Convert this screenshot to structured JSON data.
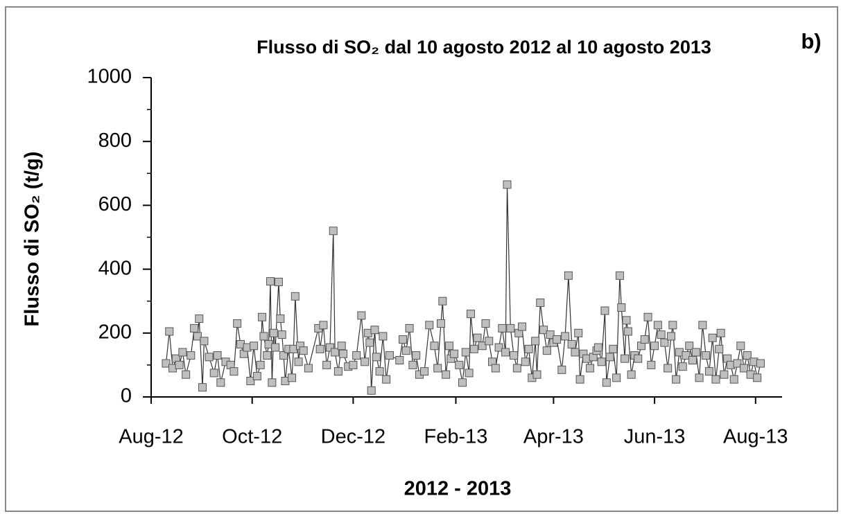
{
  "chart_data": {
    "type": "line",
    "title": "Flusso di SO₂ dal 10 agosto 2012 al 10 agosto 2013",
    "annotation": "b)",
    "ylabel": "Flusso di SO₂  (t/g)",
    "xlabel": "2012 - 2013",
    "color": "#bfbfbf",
    "line_color": "#333333",
    "xlim": [
      0,
      381
    ],
    "xticks": [
      {
        "value": 0,
        "label": "Aug-12"
      },
      {
        "value": 61,
        "label": "Oct-12"
      },
      {
        "value": 122,
        "label": "Dec-12"
      },
      {
        "value": 184,
        "label": "Feb-13"
      },
      {
        "value": 243,
        "label": "Apr-13"
      },
      {
        "value": 304,
        "label": "Jun-13"
      },
      {
        "value": 365,
        "label": "Aug-13"
      }
    ],
    "ylim": [
      0,
      1000
    ],
    "yticks": [
      0,
      200,
      400,
      600,
      800,
      1000
    ],
    "x": [
      9,
      11,
      13,
      15,
      17,
      19,
      21,
      24,
      26,
      28,
      29,
      31,
      32,
      35,
      38,
      40,
      42,
      45,
      48,
      50,
      52,
      54,
      56,
      58,
      60,
      62,
      64,
      66,
      67,
      68,
      70,
      71,
      72,
      73,
      74,
      75,
      77,
      78,
      79,
      80,
      81,
      83,
      85,
      86,
      87,
      89,
      90,
      92,
      95,
      101,
      102,
      104,
      106,
      108,
      110,
      111,
      113,
      115,
      116,
      119,
      122,
      124,
      127,
      129,
      131,
      132,
      133,
      135,
      136,
      138,
      140,
      142,
      144,
      150,
      152,
      154,
      156,
      158,
      160,
      162,
      165,
      168,
      171,
      173,
      175,
      176,
      178,
      180,
      181,
      183,
      186,
      188,
      190,
      192,
      193,
      195,
      197,
      200,
      202,
      204,
      206,
      208,
      210,
      212,
      214,
      215,
      217,
      219,
      221,
      222,
      224,
      226,
      228,
      230,
      232,
      233,
      235,
      237,
      239,
      241,
      243,
      245,
      248,
      250,
      252,
      254,
      256,
      258,
      259,
      261,
      263,
      265,
      267,
      269,
      270,
      272,
      274,
      275,
      277,
      279,
      281,
      283,
      284,
      286,
      287,
      288,
      290,
      292,
      294,
      296,
      298,
      300,
      302,
      304,
      306,
      308,
      310,
      312,
      314,
      315,
      317,
      319,
      321,
      323,
      325,
      327,
      329,
      331,
      333,
      335,
      337,
      339,
      341,
      343,
      344,
      346,
      348,
      350,
      352,
      354,
      356,
      358,
      360,
      362,
      364,
      366,
      368
    ],
    "values": [
      105,
      205,
      90,
      120,
      100,
      140,
      70,
      130,
      215,
      190,
      245,
      30,
      175,
      125,
      75,
      130,
      45,
      110,
      100,
      80,
      230,
      165,
      135,
      155,
      50,
      160,
      65,
      100,
      250,
      190,
      130,
      165,
      362,
      45,
      200,
      155,
      360,
      245,
      195,
      130,
      50,
      150,
      60,
      150,
      315,
      110,
      160,
      145,
      90,
      215,
      150,
      225,
      100,
      155,
      520,
      140,
      80,
      160,
      135,
      95,
      100,
      130,
      255,
      110,
      200,
      170,
      20,
      210,
      125,
      80,
      190,
      55,
      130,
      115,
      180,
      145,
      215,
      100,
      130,
      70,
      80,
      225,
      160,
      90,
      230,
      300,
      70,
      160,
      120,
      135,
      100,
      45,
      140,
      75,
      260,
      150,
      185,
      160,
      230,
      175,
      110,
      90,
      155,
      215,
      140,
      665,
      215,
      130,
      90,
      200,
      220,
      110,
      150,
      60,
      175,
      70,
      295,
      210,
      145,
      195,
      170,
      180,
      85,
      190,
      380,
      165,
      140,
      200,
      55,
      135,
      120,
      90,
      125,
      145,
      155,
      110,
      270,
      45,
      125,
      150,
      60,
      380,
      280,
      120,
      240,
      205,
      70,
      130,
      120,
      160,
      180,
      250,
      100,
      160,
      225,
      195,
      170,
      90,
      190,
      225,
      55,
      140,
      95,
      130,
      160,
      115,
      140,
      60,
      225,
      130,
      80,
      185,
      55,
      150,
      200,
      70,
      120,
      100,
      55,
      105,
      160,
      90,
      130,
      70,
      110,
      60,
      105
    ]
  }
}
